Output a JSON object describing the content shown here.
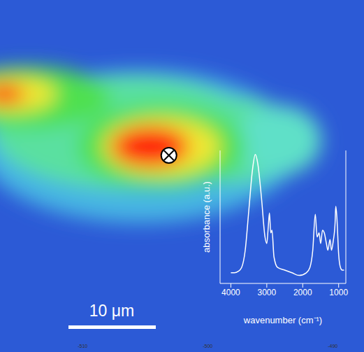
{
  "chart_data": [
    {
      "type": "heatmap",
      "xlim": [
        -516.6,
        -487.5
      ],
      "ylim": [
        0,
        28.1
      ],
      "xticks": [
        -510,
        -500,
        -490
      ],
      "regions": [
        {
          "x": -505.4,
          "y": 11.7,
          "rx": 12.8,
          "ry": 6.1,
          "level": 0.35
        },
        {
          "x": -506.5,
          "y": 10.6,
          "rx": 10.6,
          "ry": 4.5,
          "level": 0.5
        },
        {
          "x": -498.2,
          "y": 11.2,
          "rx": 6.1,
          "ry": 3.4,
          "level": 0.5
        },
        {
          "x": -494.3,
          "y": 11.2,
          "rx": 3.4,
          "ry": 2.8,
          "level": 0.45
        },
        {
          "x": -514.4,
          "y": 7.8,
          "rx": 6.7,
          "ry": 2.5,
          "level": 0.6
        },
        {
          "x": -503.7,
          "y": 11.7,
          "rx": 6.7,
          "ry": 3.4,
          "level": 0.6
        },
        {
          "x": -515.5,
          "y": 7.5,
          "rx": 3.4,
          "ry": 1.4,
          "level": 0.78
        },
        {
          "x": -503.7,
          "y": 11.7,
          "rx": 4.7,
          "ry": 2.3,
          "level": 0.78
        },
        {
          "x": -516.3,
          "y": 7.5,
          "rx": 1.7,
          "ry": 0.8,
          "level": 1.0
        },
        {
          "x": -504.6,
          "y": 11.7,
          "rx": 3.1,
          "ry": 1.6,
          "level": 1.0
        }
      ],
      "measurement_point": {
        "x": -503.1,
        "y": 12.4
      },
      "scale_bar": "10 μm"
    },
    {
      "type": "line",
      "x_label": "wavenumber (cm⁻¹)",
      "y_label": "absorbance (a.u.)",
      "xlim": [
        4300,
        800
      ],
      "ylim": [
        0,
        1
      ],
      "xticks": [
        4000,
        3000,
        2000,
        1000
      ],
      "tick_labels": "x",
      "color": "#ffffff",
      "x": [
        4000,
        3900,
        3800,
        3700,
        3600,
        3500,
        3400,
        3320,
        3250,
        3150,
        3050,
        3000,
        2960,
        2925,
        2890,
        2855,
        2800,
        2700,
        2500,
        2300,
        2100,
        1900,
        1800,
        1720,
        1650,
        1600,
        1545,
        1500,
        1450,
        1400,
        1340,
        1300,
        1240,
        1200,
        1150,
        1100,
        1080,
        1050,
        1000,
        950,
        900,
        850
      ],
      "values": [
        0.08,
        0.08,
        0.09,
        0.12,
        0.25,
        0.55,
        0.85,
        0.97,
        0.9,
        0.65,
        0.35,
        0.3,
        0.42,
        0.53,
        0.38,
        0.4,
        0.2,
        0.12,
        0.1,
        0.08,
        0.06,
        0.08,
        0.12,
        0.25,
        0.52,
        0.35,
        0.38,
        0.3,
        0.4,
        0.38,
        0.3,
        0.25,
        0.33,
        0.25,
        0.32,
        0.45,
        0.58,
        0.5,
        0.22,
        0.12,
        0.1,
        0.1
      ]
    }
  ]
}
